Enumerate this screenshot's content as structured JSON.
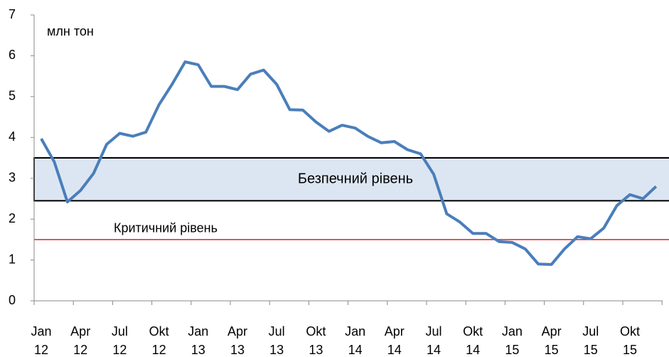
{
  "chart_data": {
    "type": "line",
    "unit_label": "млн тон",
    "categories": [
      "Jan 12",
      null,
      null,
      "Apr 12",
      null,
      null,
      "Jul 12",
      null,
      null,
      "Okt 12",
      null,
      null,
      "Jan 13",
      null,
      null,
      "Apr 13",
      null,
      null,
      "Jul 13",
      null,
      null,
      "Okt 13",
      null,
      null,
      "Jan 14",
      null,
      null,
      "Apr 14",
      null,
      null,
      "Jul 14",
      null,
      null,
      "Okt 14",
      null,
      null,
      "Jan 15",
      null,
      null,
      "Apr 15",
      null,
      null,
      "Jul 15",
      null,
      null,
      "Okt 15",
      null,
      null
    ],
    "values": [
      3.97,
      3.4,
      2.42,
      2.7,
      3.12,
      3.83,
      4.1,
      4.03,
      4.13,
      4.8,
      5.3,
      5.85,
      5.78,
      5.25,
      5.25,
      5.17,
      5.55,
      5.65,
      5.3,
      4.68,
      4.67,
      4.38,
      4.15,
      4.3,
      4.23,
      4.02,
      3.87,
      3.9,
      3.7,
      3.6,
      3.1,
      2.13,
      1.93,
      1.65,
      1.65,
      1.45,
      1.43,
      1.27,
      0.9,
      0.89,
      1.27,
      1.57,
      1.52,
      1.78,
      2.33,
      2.6,
      2.5,
      2.8
    ],
    "color": "#4a7ebb",
    "ylim": [
      0,
      7
    ],
    "yticks": [
      0,
      1,
      2,
      3,
      4,
      5,
      6,
      7
    ],
    "safe_band": {
      "label": "Безпечний рівень",
      "range": [
        2.45,
        3.5
      ],
      "color": "#dce6f2"
    },
    "critical_line": {
      "label": "Критичний рівень",
      "value": 1.5,
      "color": "#e02020"
    }
  }
}
